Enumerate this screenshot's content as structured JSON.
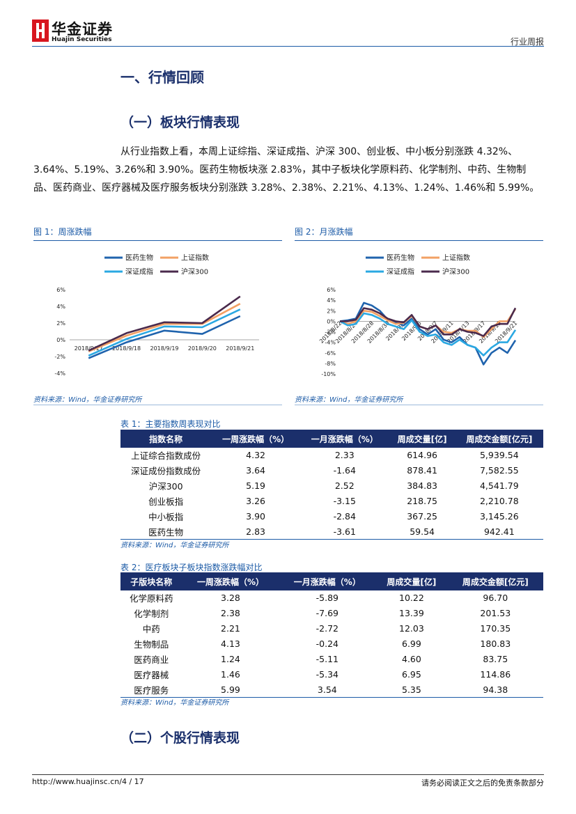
{
  "header": {
    "brand": "华金证券",
    "brand_en": "Huajin Securities",
    "report_type": "行业周报"
  },
  "section_title": "一、行情回顾",
  "subsection_1": "（一）板块行情表现",
  "paragraph": "从行业指数上看，本周上证综指、深证成指、沪深 300、创业板、中小板分别涨跌 4.32%、3.64%、5.19%、3.26%和 3.90%。医药生物板块涨 2.83%，其中子板块化学原料药、化学制剂、中药、生物制品、医药商业、医疗器械及医疗服务板块分别涨跌 3.28%、2.38%、2.21%、4.13%、1.24%、1.46%和 5.99%。",
  "figures": [
    {
      "caption": "图 1：周涨跌幅",
      "source": "资料来源：Wind，华金证券研究所"
    },
    {
      "caption": "图 2：月涨跌幅",
      "source": "资料来源：Wind，华金证券研究所"
    }
  ],
  "chart_data": [
    {
      "type": "line",
      "categories": [
        "2018/9/17",
        "2018/9/18",
        "2018/9/19",
        "2018/9/20",
        "2018/9/21"
      ],
      "series": [
        {
          "name": "医药生物",
          "color": "#1f63ad",
          "values": [
            -2.2,
            -0.3,
            1.1,
            0.7,
            2.83
          ]
        },
        {
          "name": "上证指数",
          "color": "#f2a064",
          "values": [
            -1.4,
            0.5,
            1.9,
            1.9,
            4.32
          ]
        },
        {
          "name": "深证成指",
          "color": "#2aa8e2",
          "values": [
            -1.9,
            0.1,
            1.6,
            1.5,
            3.64
          ]
        },
        {
          "name": "沪深300",
          "color": "#4a2a4c",
          "values": [
            -1.3,
            0.8,
            2.1,
            2.0,
            5.19
          ]
        }
      ],
      "ylim": [
        -4,
        6
      ],
      "yticks": [
        {
          "value": -4,
          "label": "-4%"
        },
        {
          "value": -2,
          "label": "-2%"
        },
        {
          "value": 0,
          "label": "0%"
        },
        {
          "value": 2,
          "label": "2%"
        },
        {
          "value": 4,
          "label": "4%"
        },
        {
          "value": 6,
          "label": "6%"
        }
      ],
      "grid": false
    },
    {
      "type": "line",
      "categories": [
        "2018/8/22",
        null,
        "2018/8/24",
        null,
        "2018/8/28",
        null,
        "2018/8/30",
        null,
        "2018/9/3",
        null,
        "2018/9/5",
        null,
        "2018/9/7",
        null,
        "2018/9/11",
        null,
        "2018/9/13",
        null,
        "2018/9/17",
        null,
        "2018/9/19",
        null,
        "2018/9/21"
      ],
      "series": [
        {
          "name": "医药生物",
          "color": "#1f63ad",
          "values": [
            0,
            0.2,
            0.5,
            3.5,
            3.0,
            2.0,
            0.3,
            -0.2,
            -0.8,
            0.5,
            -1.5,
            -2.5,
            -1.5,
            -3.5,
            -4.0,
            -3.0,
            -4.5,
            -5.0,
            -8.2,
            -6.0,
            -5.0,
            -6.0,
            -3.61
          ]
        },
        {
          "name": "上证指数",
          "color": "#f2a064",
          "values": [
            0,
            -0.5,
            0,
            2.0,
            1.8,
            1.0,
            0.2,
            -0.5,
            -0.3,
            1.0,
            -1.0,
            -1.5,
            -0.8,
            -2.0,
            -2.2,
            -1.5,
            -1.8,
            -1.8,
            -3.0,
            -1.5,
            0,
            0,
            2.33
          ]
        },
        {
          "name": "深证成指",
          "color": "#2aa8e2",
          "values": [
            0,
            -0.8,
            -0.5,
            1.5,
            1.2,
            0.5,
            -0.5,
            -1.0,
            -1.5,
            0.2,
            -2.0,
            -2.8,
            -2.5,
            -4.0,
            -4.5,
            -3.5,
            -4.5,
            -5.0,
            -6.5,
            -5.0,
            -4.0,
            -4.0,
            -1.64
          ]
        },
        {
          "name": "沪深300",
          "color": "#4a2a4c",
          "values": [
            0,
            0,
            0.3,
            2.5,
            2.2,
            1.5,
            0.5,
            0,
            -0.2,
            1.2,
            -1.0,
            -1.5,
            -0.8,
            -2.5,
            -2.5,
            -1.5,
            -2.0,
            -2.2,
            -2.8,
            -1.0,
            -0.5,
            -0.5,
            2.52
          ]
        }
      ],
      "ylim": [
        -10,
        6
      ],
      "yticks": [
        {
          "value": -10,
          "label": "-10%"
        },
        {
          "value": -8,
          "label": "-8%"
        },
        {
          "value": -6,
          "label": "-6%"
        },
        {
          "value": -4,
          "label": "-4%"
        },
        {
          "value": -2,
          "label": "-2%"
        },
        {
          "value": 0,
          "label": "0%"
        },
        {
          "value": 2,
          "label": "2%"
        },
        {
          "value": 4,
          "label": "4%"
        },
        {
          "value": 6,
          "label": "6%"
        }
      ],
      "grid": false
    }
  ],
  "tables": [
    {
      "caption": "表 1：主要指数周表现对比",
      "columns": [
        "指数名称",
        "一周涨跌幅（%）",
        "一月涨跌幅（%）",
        "周成交量[亿]",
        "周成交金额[亿元]"
      ],
      "rows": [
        [
          "上证综合指数成份",
          "4.32",
          "2.33",
          "614.96",
          "5,939.54"
        ],
        [
          "深证成份指数成份",
          "3.64",
          "-1.64",
          "878.41",
          "7,582.55"
        ],
        [
          "沪深300",
          "5.19",
          "2.52",
          "384.83",
          "4,541.79"
        ],
        [
          "创业板指",
          "3.26",
          "-3.15",
          "218.75",
          "2,210.78"
        ],
        [
          "中小板指",
          "3.90",
          "-2.84",
          "367.25",
          "3,145.26"
        ],
        [
          "医药生物",
          "2.83",
          "-3.61",
          "59.54",
          "942.41"
        ]
      ],
      "source": "资料来源：Wind，华金证券研究所"
    },
    {
      "caption": "表 2：医疗板块子板块指数涨跌幅对比",
      "columns": [
        "子版块名称",
        "一周涨跌幅（%）",
        "一月涨跌幅（%）",
        "周成交量[亿]",
        "周成交金额[亿元]"
      ],
      "rows": [
        [
          "化学原料药",
          "3.28",
          "-5.89",
          "10.22",
          "96.70"
        ],
        [
          "化学制剂",
          "2.38",
          "-7.69",
          "13.39",
          "201.53"
        ],
        [
          "中药",
          "2.21",
          "-2.72",
          "12.03",
          "170.35"
        ],
        [
          "生物制品",
          "4.13",
          "-0.24",
          "6.99",
          "180.83"
        ],
        [
          "医药商业",
          "1.24",
          "-5.11",
          "4.60",
          "83.75"
        ],
        [
          "医疗器械",
          "1.46",
          "-5.34",
          "6.95",
          "114.86"
        ],
        [
          "医疗服务",
          "5.99",
          "3.54",
          "5.35",
          "94.38"
        ]
      ],
      "source": "资料来源：Wind，华金证券研究所"
    }
  ],
  "subsection_2": "（二）个股行情表现",
  "footer": {
    "url": "http://www.huajinsc.cn/4 / 17",
    "notice": "请务必阅读正文之后的免责条款部分"
  }
}
